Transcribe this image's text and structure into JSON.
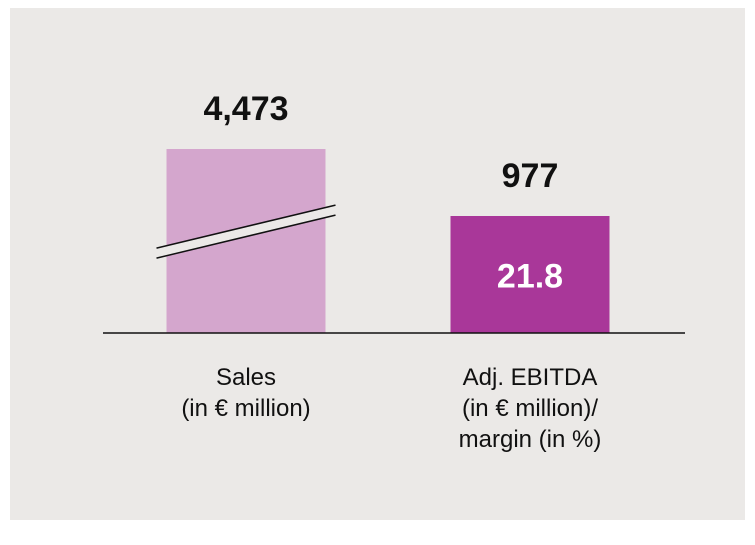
{
  "chart_data": {
    "type": "bar",
    "axis_break": true,
    "categories": [
      "Sales\n(in € million)",
      "Adj. EBITDA\n(in € million)/\nmargin (in %)"
    ],
    "values": [
      4473,
      977
    ],
    "value_labels": [
      "4,473",
      "977"
    ],
    "colors": [
      "#d4a6cd",
      "#a93799"
    ],
    "inner_labels": [
      null,
      21.8
    ]
  }
}
